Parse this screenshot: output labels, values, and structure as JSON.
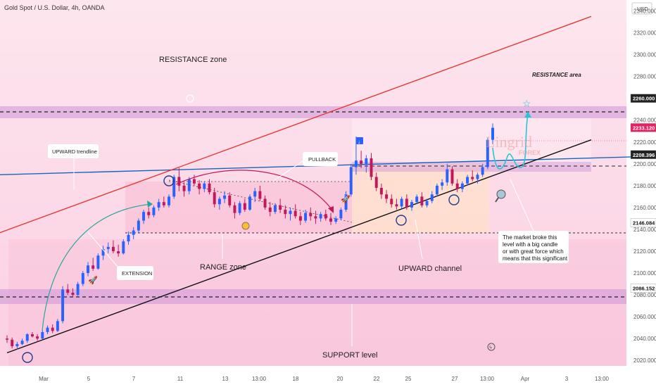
{
  "header": {
    "title": "Gold Spot / U.S. Dollar, 4h, OANDA",
    "currency": "USD"
  },
  "chart_data": {
    "type": "candlestick",
    "symbol": "Gold Spot / U.S. Dollar",
    "interval": "4h",
    "source": "OANDA",
    "ylim": [
      2015,
      2350
    ],
    "y_ticks": [
      "2340.000",
      "2320.000",
      "2300.000",
      "2280.000",
      "2260.000",
      "2240.000",
      "2220.000",
      "2200.000",
      "2180.000",
      "2160.000",
      "2140.000",
      "2120.000",
      "2100.000",
      "2080.000",
      "2060.000",
      "2040.000",
      "2020.000"
    ],
    "x_ticks": [
      "Mar",
      "5",
      "7",
      "11",
      "13",
      "13:00",
      "18",
      "20",
      "22",
      "25",
      "27",
      "13:00",
      "Apr",
      "3",
      "13:00"
    ],
    "price_tags": [
      {
        "value": "2260.000",
        "price": 2260,
        "color": "#222222",
        "text_color": "#ffffff"
      },
      {
        "value": "2233.120",
        "price": 2233.12,
        "color": "#e91e63",
        "text_color": "#ffffff"
      },
      {
        "value": "2208.396",
        "price": 2208.4,
        "color": "#222222",
        "text_color": "#ffffff"
      },
      {
        "value": "2146.084",
        "price": 2146.08,
        "color": "#ffffff",
        "text_color": "#111111"
      },
      {
        "value": "2086.152",
        "price": 2086.15,
        "color": "#ffffff",
        "text_color": "#111111"
      }
    ],
    "levels": [
      {
        "name": "resistance-level",
        "price": 2260,
        "zone": [
          2255,
          2268
        ]
      },
      {
        "name": "support-level",
        "price": 2086.15,
        "zone": [
          2079,
          2093
        ]
      },
      {
        "name": "range-top",
        "price": 2208.4
      },
      {
        "name": "range-bottom",
        "price": 2146.08
      }
    ],
    "candles": [
      [
        2040,
        2043,
        2036,
        2039
      ],
      [
        2039,
        2041,
        2031,
        2033
      ],
      [
        2033,
        2037,
        2030,
        2035
      ],
      [
        2035,
        2040,
        2034,
        2038
      ],
      [
        2038,
        2045,
        2036,
        2044
      ],
      [
        2044,
        2046,
        2041,
        2042
      ],
      [
        2042,
        2044,
        2038,
        2040
      ],
      [
        2040,
        2048,
        2039,
        2046
      ],
      [
        2046,
        2052,
        2044,
        2050
      ],
      [
        2050,
        2053,
        2045,
        2047
      ],
      [
        2047,
        2058,
        2046,
        2056
      ],
      [
        2056,
        2088,
        2054,
        2085
      ],
      [
        2085,
        2090,
        2080,
        2082
      ],
      [
        2082,
        2086,
        2078,
        2080
      ],
      [
        2080,
        2092,
        2079,
        2090
      ],
      [
        2090,
        2102,
        2088,
        2100
      ],
      [
        2100,
        2110,
        2097,
        2107
      ],
      [
        2107,
        2114,
        2102,
        2104
      ],
      [
        2104,
        2118,
        2103,
        2116
      ],
      [
        2116,
        2125,
        2112,
        2122
      ],
      [
        2122,
        2128,
        2118,
        2124
      ],
      [
        2124,
        2130,
        2118,
        2120
      ],
      [
        2120,
        2126,
        2115,
        2118
      ],
      [
        2118,
        2131,
        2117,
        2129
      ],
      [
        2129,
        2138,
        2126,
        2135
      ],
      [
        2135,
        2142,
        2131,
        2139
      ],
      [
        2139,
        2150,
        2137,
        2148
      ],
      [
        2148,
        2158,
        2145,
        2156
      ],
      [
        2156,
        2160,
        2150,
        2153
      ],
      [
        2153,
        2162,
        2151,
        2160
      ],
      [
        2160,
        2168,
        2157,
        2165
      ],
      [
        2165,
        2170,
        2160,
        2162
      ],
      [
        2162,
        2172,
        2160,
        2170
      ],
      [
        2170,
        2190,
        2168,
        2188
      ],
      [
        2188,
        2196,
        2175,
        2180
      ],
      [
        2180,
        2183,
        2170,
        2175
      ],
      [
        2175,
        2188,
        2172,
        2186
      ],
      [
        2186,
        2190,
        2180,
        2182
      ],
      [
        2182,
        2185,
        2172,
        2177
      ],
      [
        2177,
        2184,
        2174,
        2182
      ],
      [
        2182,
        2186,
        2172,
        2174
      ],
      [
        2174,
        2178,
        2160,
        2163
      ],
      [
        2163,
        2170,
        2158,
        2168
      ],
      [
        2168,
        2175,
        2164,
        2171
      ],
      [
        2171,
        2174,
        2160,
        2162
      ],
      [
        2162,
        2165,
        2150,
        2155
      ],
      [
        2155,
        2166,
        2153,
        2164
      ],
      [
        2164,
        2168,
        2156,
        2158
      ],
      [
        2158,
        2172,
        2157,
        2170
      ],
      [
        2170,
        2178,
        2165,
        2175
      ],
      [
        2175,
        2180,
        2166,
        2168
      ],
      [
        2168,
        2171,
        2158,
        2160
      ],
      [
        2160,
        2165,
        2152,
        2156
      ],
      [
        2156,
        2164,
        2154,
        2162
      ],
      [
        2162,
        2168,
        2155,
        2158
      ],
      [
        2158,
        2162,
        2150,
        2154
      ],
      [
        2154,
        2160,
        2148,
        2157
      ],
      [
        2157,
        2163,
        2150,
        2152
      ],
      [
        2152,
        2156,
        2144,
        2148
      ],
      [
        2148,
        2158,
        2146,
        2155
      ],
      [
        2155,
        2160,
        2148,
        2152
      ],
      [
        2152,
        2157,
        2145,
        2150
      ],
      [
        2150,
        2156,
        2147,
        2154
      ],
      [
        2154,
        2158,
        2148,
        2150
      ],
      [
        2150,
        2155,
        2144,
        2147
      ],
      [
        2147,
        2152,
        2145,
        2150
      ],
      [
        2150,
        2160,
        2149,
        2158
      ],
      [
        2158,
        2175,
        2156,
        2172
      ],
      [
        2172,
        2200,
        2170,
        2197
      ],
      [
        2197,
        2225,
        2190,
        2203
      ],
      [
        2203,
        2212,
        2196,
        2200
      ],
      [
        2200,
        2208,
        2192,
        2205
      ],
      [
        2205,
        2210,
        2185,
        2188
      ],
      [
        2188,
        2192,
        2175,
        2178
      ],
      [
        2178,
        2182,
        2168,
        2172
      ],
      [
        2172,
        2176,
        2164,
        2168
      ],
      [
        2168,
        2172,
        2160,
        2163
      ],
      [
        2163,
        2168,
        2158,
        2161
      ],
      [
        2161,
        2170,
        2159,
        2168
      ],
      [
        2168,
        2172,
        2158,
        2160
      ],
      [
        2160,
        2167,
        2157,
        2165
      ],
      [
        2165,
        2172,
        2163,
        2170
      ],
      [
        2170,
        2174,
        2160,
        2162
      ],
      [
        2162,
        2168,
        2160,
        2166
      ],
      [
        2166,
        2175,
        2164,
        2172
      ],
      [
        2172,
        2182,
        2170,
        2180
      ],
      [
        2180,
        2186,
        2176,
        2183
      ],
      [
        2183,
        2200,
        2180,
        2195
      ],
      [
        2195,
        2198,
        2180,
        2182
      ],
      [
        2182,
        2186,
        2174,
        2177
      ],
      [
        2177,
        2184,
        2174,
        2182
      ],
      [
        2182,
        2190,
        2180,
        2188
      ],
      [
        2188,
        2194,
        2184,
        2186
      ],
      [
        2186,
        2192,
        2182,
        2190
      ],
      [
        2190,
        2200,
        2188,
        2197
      ],
      [
        2197,
        2224,
        2195,
        2222
      ],
      [
        2222,
        2237,
        2218,
        2233
      ]
    ],
    "trendlines": [
      {
        "name": "upward-trendline",
        "color": "#1565c0",
        "from": [
          0,
          2190
        ],
        "to": [
          932,
          2207
        ]
      },
      {
        "name": "resistance-trendline",
        "color": "#e53935",
        "from": [
          0,
          2137
        ],
        "to": [
          840,
          2335
        ]
      },
      {
        "name": "support-trendline",
        "color": "#111111",
        "from": [
          10,
          2027
        ],
        "to": [
          840,
          2222
        ]
      }
    ],
    "annotations": {
      "resistance_zone": "RESISTANCE zone",
      "resistance_area": "RESISTANCE area",
      "upward_trendline": "UPWARD trendline",
      "pullback": "PULLBACK",
      "extension": "EXTENSION",
      "range_zone": "RANGE zone",
      "upward_channel": "UPWARD channel",
      "support_level": "SUPPORT level",
      "note_lines": [
        "The market broke this",
        "level with a big candle",
        "or with great force which",
        "means that this significant"
      ]
    },
    "watermark": {
      "line1": "Lingrid",
      "line2": "FOREX"
    },
    "colors": {
      "bull": "#2962ff",
      "bear": "#c2185b",
      "background": "#fce4ec",
      "zone": "#e1bee7",
      "range_fill": "#f8bbd0",
      "channel_fill": "#ffe0cc",
      "projection": "#26c6da"
    }
  }
}
